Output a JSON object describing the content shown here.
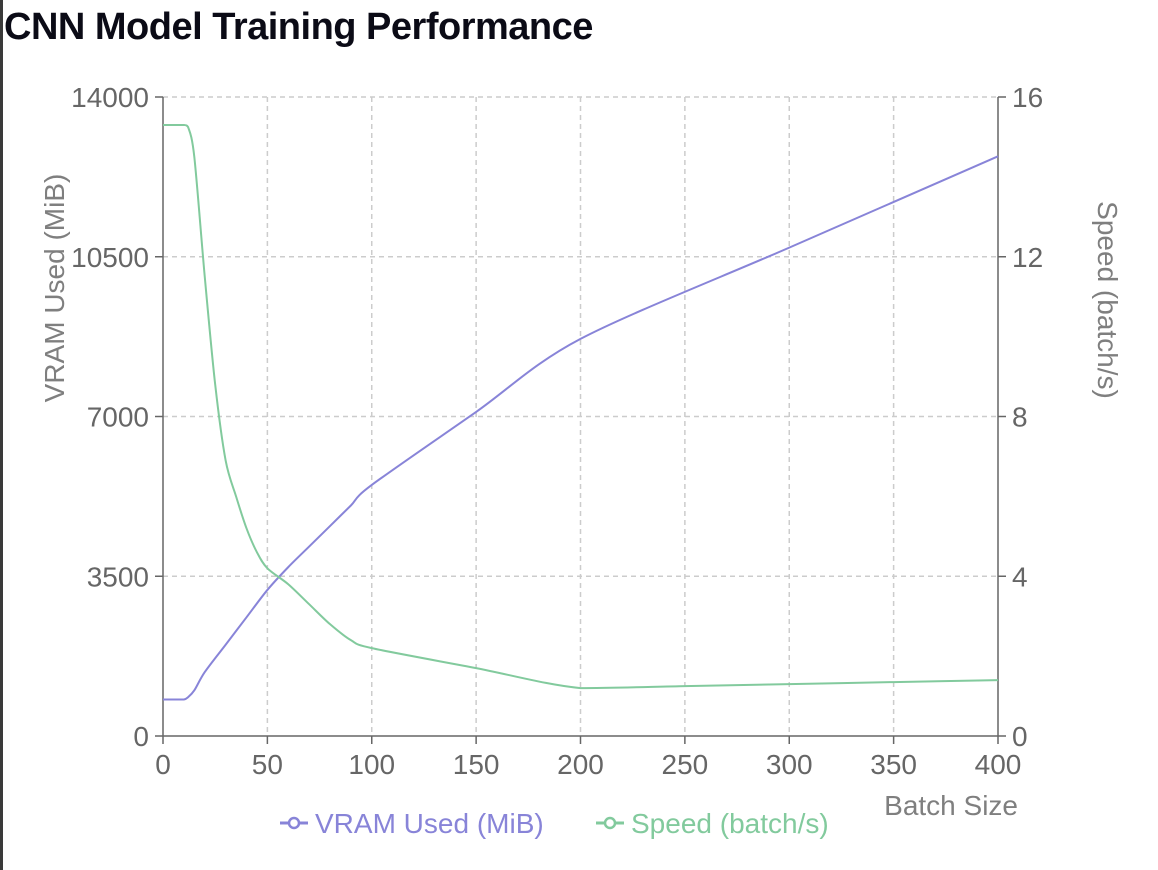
{
  "title": "CNN Model Training Performance",
  "chart_data": {
    "type": "line",
    "xlabel": "Batch Size",
    "xlim": [
      0,
      400
    ],
    "xticks": [
      0,
      50,
      100,
      150,
      200,
      250,
      300,
      350,
      400
    ],
    "y_left": {
      "label": "VRAM Used (MiB)",
      "lim": [
        0,
        14000
      ],
      "ticks": [
        0,
        3500,
        7000,
        10500,
        14000
      ]
    },
    "y_right": {
      "label": "Speed (batch/s)",
      "lim": [
        0,
        16
      ],
      "ticks": [
        0,
        4,
        8,
        12,
        16
      ]
    },
    "grid": true,
    "legend_position": "bottom",
    "series": [
      {
        "name": "VRAM Used (MiB)",
        "axis": "left",
        "color": "#8884d8",
        "x": [
          0,
          5,
          10,
          12,
          15,
          20,
          30,
          40,
          50,
          60,
          70,
          80,
          90,
          100,
          150,
          200,
          300,
          400
        ],
        "y": [
          800,
          800,
          800,
          850,
          1000,
          1400,
          2000,
          2600,
          3200,
          3700,
          4150,
          4600,
          5050,
          5500,
          7100,
          8700,
          10700,
          12700
        ]
      },
      {
        "name": "Speed (batch/s)",
        "axis": "right",
        "color": "#82ca9d",
        "x": [
          0,
          5,
          10,
          12,
          15,
          20,
          25,
          30,
          35,
          40,
          45,
          50,
          60,
          70,
          80,
          90,
          100,
          150,
          200,
          250,
          300,
          350,
          400
        ],
        "y": [
          15.3,
          15.3,
          15.3,
          15.25,
          14.5,
          11.5,
          8.8,
          6.9,
          6.0,
          5.2,
          4.6,
          4.2,
          3.8,
          3.3,
          2.8,
          2.4,
          2.2,
          1.7,
          1.2,
          1.25,
          1.3,
          1.35,
          1.4
        ]
      }
    ]
  }
}
